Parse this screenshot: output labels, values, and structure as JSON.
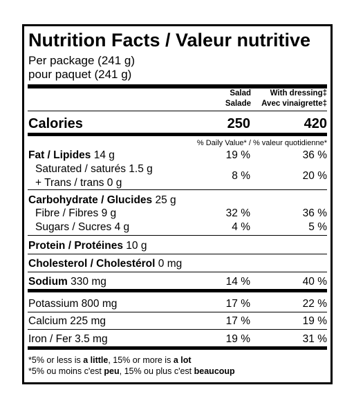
{
  "header": {
    "title": "Nutrition Facts / Valeur nutritive",
    "serving": [
      "Per package (241 g)",
      "pour paquet (241 g)"
    ]
  },
  "columns": [
    [
      "Salad",
      "Salade"
    ],
    [
      "With dressing‡",
      "Avec vinaigrette‡"
    ]
  ],
  "calories": {
    "label": "Calories",
    "values": [
      "250",
      "420"
    ]
  },
  "dv_header": "% Daily Value* / % valeur quotidienne*",
  "rows": [
    {
      "name": "Fat / Lipides",
      "amount": "14 g",
      "values": [
        "19 %",
        "36 %"
      ]
    },
    {
      "name": "Saturated / saturés 1.5 g",
      "name2": "+ Trans / trans 0 g",
      "values": [
        "8 %",
        "20 %"
      ]
    },
    {
      "name": "Carbohydrate / Glucides",
      "amount": "25 g"
    },
    {
      "name": "Fibre / Fibres 9 g",
      "values": [
        "32 %",
        "36 %"
      ]
    },
    {
      "name": "Sugars / Sucres 4 g",
      "values": [
        "4 %",
        "5 %"
      ]
    },
    {
      "name": "Protein / Protéines",
      "amount": "10 g"
    },
    {
      "name": "Cholesterol / Cholestérol",
      "amount": "0 mg"
    },
    {
      "name": "Sodium",
      "amount": "330 mg",
      "values": [
        "14 %",
        "40 %"
      ]
    },
    {
      "name": "Potassium 800 mg",
      "values": [
        "17 %",
        "22 %"
      ]
    },
    {
      "name": "Calcium 225 mg",
      "values": [
        "17 %",
        "19 %"
      ]
    },
    {
      "name": "Iron / Fer 3.5 mg",
      "values": [
        "19 %",
        "31 %"
      ]
    }
  ],
  "footnotes": [
    [
      "*5% or less is ",
      "a little",
      ", 15% or more is ",
      "a lot"
    ],
    [
      "*5% ou moins c'est ",
      "peu",
      ", 15% ou plus c'est ",
      "beaucoup"
    ]
  ]
}
